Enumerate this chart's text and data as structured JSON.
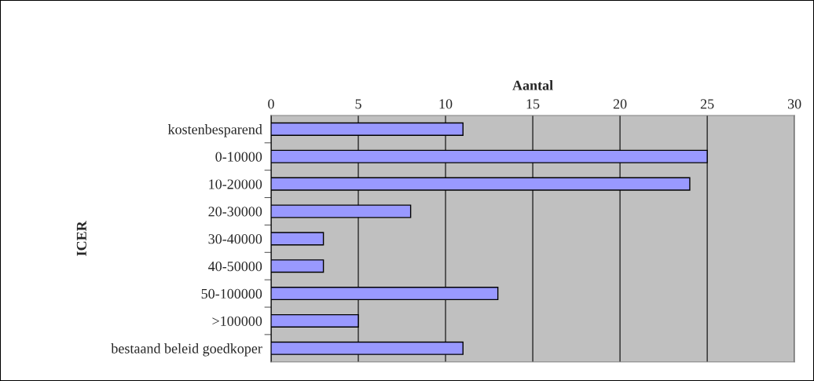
{
  "chart_data": {
    "type": "bar",
    "orientation": "horizontal",
    "xlabel": "Aantal",
    "ylabel": "ICER",
    "categories": [
      "kostenbesparend",
      "0-10000",
      "10-20000",
      "20-30000",
      "30-40000",
      "40-50000",
      "50-100000",
      ">100000",
      "bestaand beleid goedkoper"
    ],
    "values": [
      11,
      25,
      24,
      8,
      3,
      3,
      13,
      5,
      11
    ],
    "color": "#9999ff",
    "xlim": [
      0,
      30
    ],
    "xticks": [
      0,
      5,
      10,
      15,
      20,
      25,
      30
    ],
    "grid": "x",
    "legend": false
  }
}
